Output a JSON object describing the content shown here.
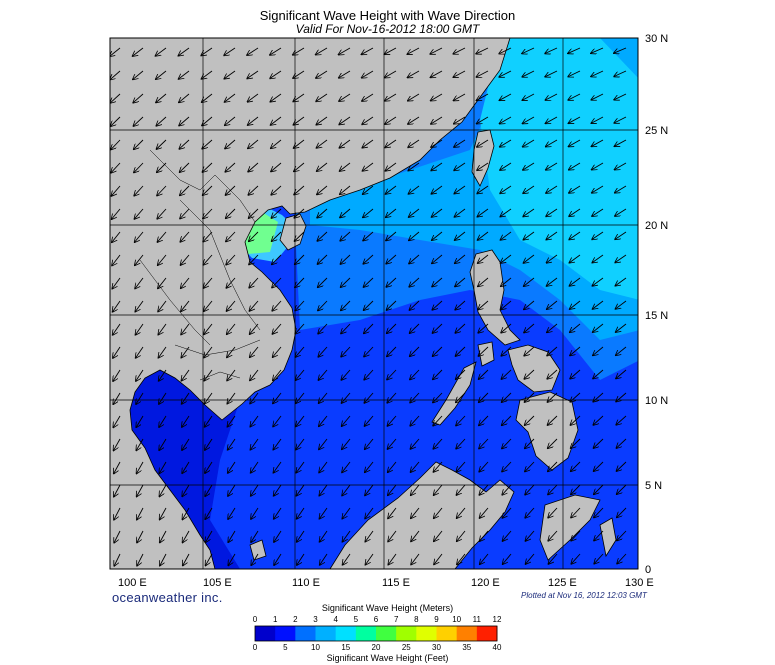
{
  "title": "Significant Wave Height with Wave Direction",
  "subtitle": "Valid For Nov-16-2012 18:00 GMT",
  "lat_labels": [
    "30 N",
    "25 N",
    "20 N",
    "15 N",
    "10 N",
    "5 N",
    "0"
  ],
  "lon_labels": [
    "100 E",
    "105 E",
    "110 E",
    "115 E",
    "120 E",
    "125 E",
    "130 E"
  ],
  "brand": "oceanweather inc.",
  "plotted": "Plotted at Nov 16, 2012 12:03 GMT",
  "colorbar": {
    "meters_title": "Significant Wave Height (Meters)",
    "feet_title": "Significant Wave Height (Feet)",
    "meters_ticks": [
      "0",
      "1",
      "2",
      "3",
      "4",
      "5",
      "6",
      "7",
      "8",
      "9",
      "10",
      "11",
      "12"
    ],
    "feet_ticks": [
      "0",
      "5",
      "10",
      "15",
      "20",
      "25",
      "30",
      "35",
      "40"
    ],
    "colors": [
      "#0000cc",
      "#0010ff",
      "#0070ff",
      "#00b0ff",
      "#00e0ff",
      "#00ffa0",
      "#40ff40",
      "#a0ff00",
      "#e0ff00",
      "#ffd000",
      "#ff8000",
      "#ff2000"
    ]
  },
  "colors": {
    "land": "#c0c0c0",
    "sea": "#0a3cff",
    "grid": "#000000"
  }
}
